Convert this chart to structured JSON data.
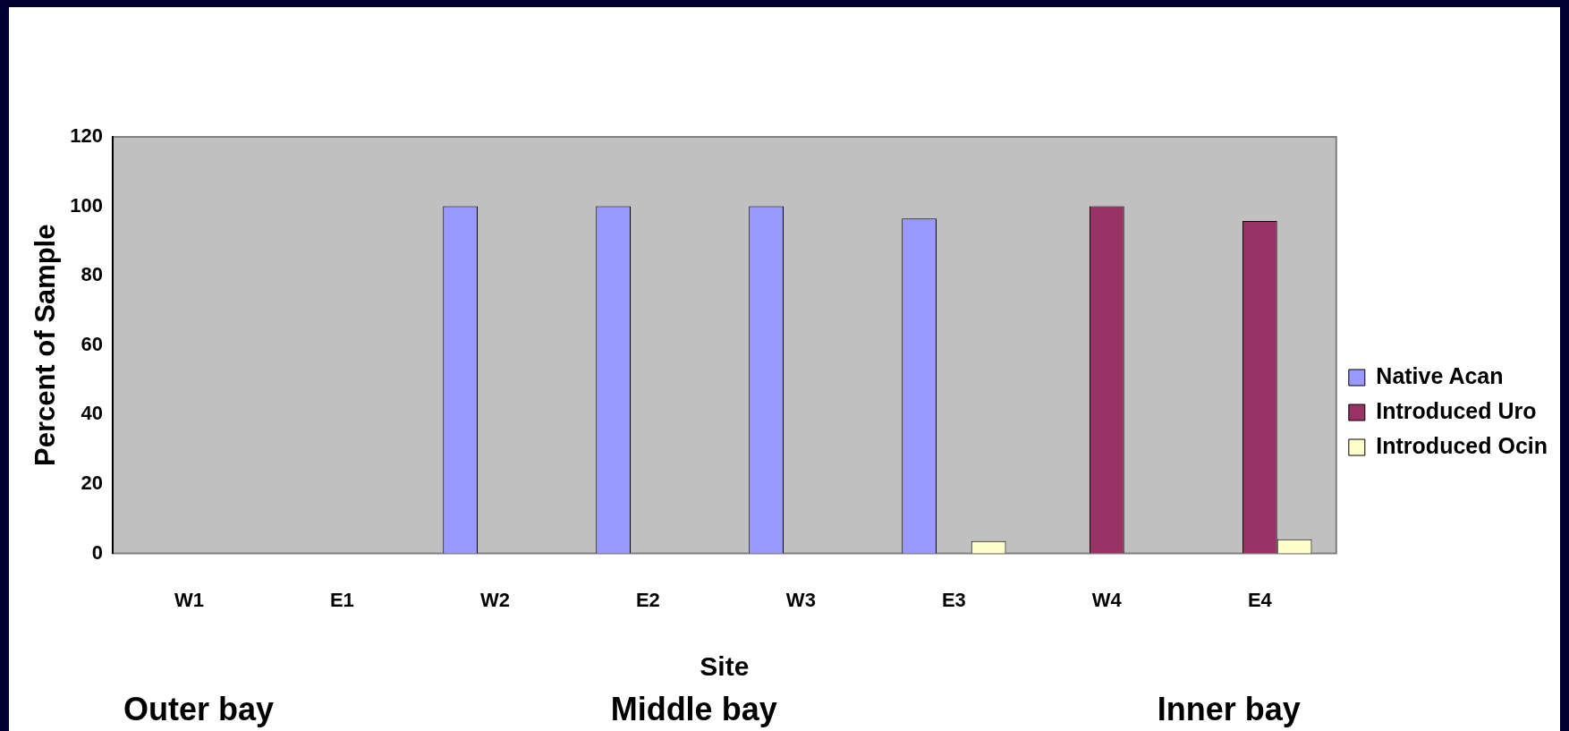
{
  "chart_data": {
    "type": "bar",
    "xlabel": "Site",
    "ylabel": "Percent of Sample",
    "categories": [
      "W1",
      "E1",
      "W2",
      "E2",
      "W3",
      "E3",
      "W4",
      "E4"
    ],
    "series": [
      {
        "name": "Native Acan",
        "color": "#9999ff",
        "values": [
          0,
          0,
          100,
          100,
          100,
          96.5,
          0,
          0
        ]
      },
      {
        "name": "Introduced Uro",
        "color": "#993366",
        "values": [
          0,
          0,
          0,
          0,
          0,
          0,
          100,
          95.8
        ]
      },
      {
        "name": "Introduced Ocin",
        "color": "#ffffcc",
        "values": [
          0,
          0,
          0,
          0,
          0,
          3.6,
          0,
          4.1
        ]
      }
    ],
    "ylim": [
      0,
      120
    ],
    "yticks": [
      0,
      20,
      40,
      60,
      80,
      100,
      120
    ],
    "grid": false,
    "legend": "right",
    "annotations": [
      "Outer bay",
      "Middle bay",
      "Inner bay"
    ]
  }
}
